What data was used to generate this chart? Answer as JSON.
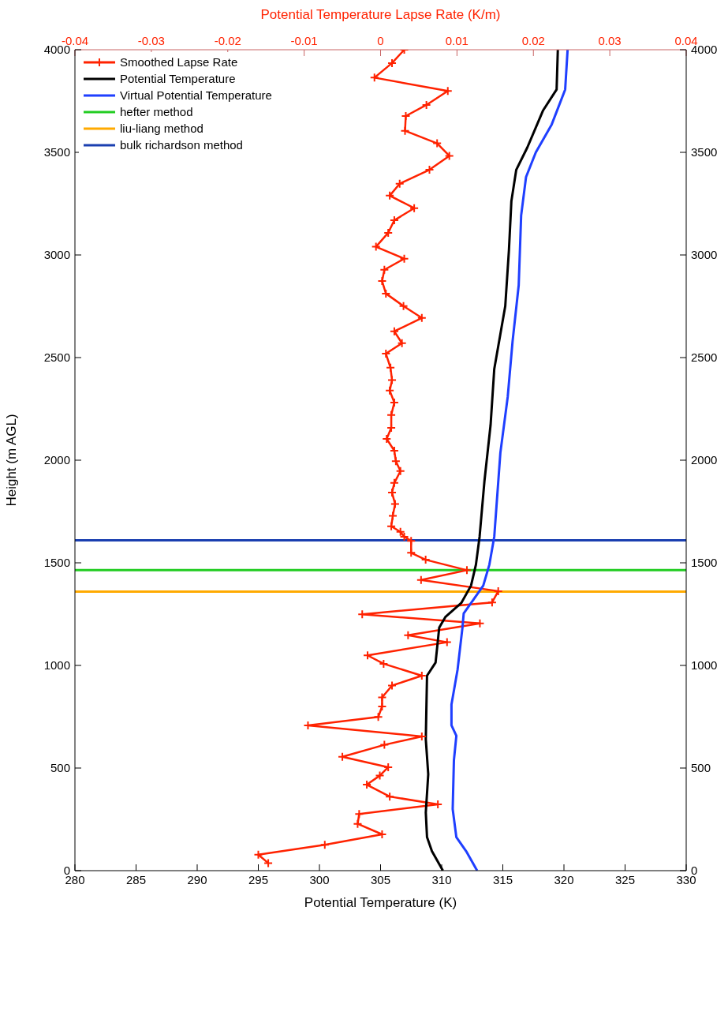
{
  "chart_data": {
    "type": "line",
    "xlabel": "Potential Temperature (K)",
    "ylabel": "Height (m AGL)",
    "x2label": "Potential Temperature Lapse Rate (K/m)",
    "xlim": [
      280,
      330
    ],
    "xticks": [
      280,
      285,
      290,
      295,
      300,
      305,
      310,
      315,
      320,
      325,
      330
    ],
    "ylim": [
      0,
      4000
    ],
    "yticks": [
      0,
      500,
      1000,
      1500,
      2000,
      2500,
      3000,
      3500,
      4000
    ],
    "y2lim": [
      0,
      4000
    ],
    "y2ticks": [
      0,
      500,
      1000,
      1500,
      2000,
      2500,
      3000,
      3500,
      4000
    ],
    "x2lim": [
      -0.04,
      0.04
    ],
    "x2ticks": [
      -0.04,
      -0.03,
      -0.02,
      -0.01,
      0,
      0.01,
      0.02,
      0.03,
      0.04
    ],
    "legend": "top left",
    "line_style": "solid",
    "series": [
      {
        "name": "Smoothed Lapse Rate",
        "color": "#ff2200",
        "axis": "x2",
        "marker": "cross",
        "x": [
          0.0031,
          0.0015,
          -0.0008,
          0.0088,
          0.006,
          0.0033,
          0.0032,
          0.0074,
          0.009,
          0.0064,
          0.0025,
          0.0012,
          0.0044,
          0.0018,
          0.001,
          -0.0006,
          0.0031,
          0.0005,
          0.0002,
          0.0007,
          0.003,
          0.0054,
          0.0018,
          0.0028,
          0.0007,
          0.0013,
          0.0015,
          0.0012,
          0.0018,
          0.0014,
          0.0014,
          0.0008,
          0.0018,
          0.002,
          0.0026,
          0.0018,
          0.0015,
          0.0019,
          0.0016,
          0.0014,
          0.0026,
          0.0031,
          0.004,
          0.004,
          0.0059,
          0.0113,
          0.0053,
          0.0154,
          0.0146,
          -0.0024,
          0.013,
          0.0036,
          0.0087,
          -0.0017,
          0.0004,
          0.0054,
          0.0015,
          0.0002,
          0.0002,
          -0.0003,
          -0.0095,
          0.0054,
          0.0005,
          -0.005,
          0.001,
          -0.0001,
          -0.0018,
          0.0012,
          0.0075,
          -0.0028,
          -0.003,
          0.0002,
          -0.0073,
          -0.016,
          -0.0147
        ],
        "values": [
          4000,
          3935,
          3864,
          3799,
          3731,
          3677,
          3605,
          3544,
          3483,
          3415,
          3347,
          3289,
          3228,
          3169,
          3108,
          3040,
          2982,
          2928,
          2873,
          2812,
          2751,
          2693,
          2628,
          2570,
          2519,
          2451,
          2390,
          2339,
          2281,
          2220,
          2158,
          2104,
          2046,
          1995,
          1947,
          1889,
          1842,
          1787,
          1729,
          1678,
          1651,
          1627,
          1607,
          1549,
          1515,
          1464,
          1416,
          1362,
          1307,
          1249,
          1205,
          1147,
          1113,
          1049,
          1008,
          950,
          902,
          844,
          800,
          749,
          708,
          654,
          613,
          555,
          504,
          463,
          419,
          361,
          323,
          276,
          228,
          177,
          126,
          78,
          37
        ]
      },
      {
        "name": "Potential Temperature",
        "color": "#000000",
        "marker": "none",
        "x": [
          319.5,
          319.4,
          318.3,
          317.0,
          316.1,
          315.7,
          315.5,
          315.2,
          314.8,
          314.3,
          314.0,
          313.5,
          313.1,
          312.8,
          312.4,
          311.6,
          310.3,
          309.8,
          309.5,
          308.8,
          308.7,
          308.9,
          308.7,
          308.8,
          309.2,
          310.1
        ],
        "values": [
          4000,
          3806,
          3705,
          3523,
          3415,
          3262,
          3023,
          2751,
          2614,
          2444,
          2172,
          1900,
          1627,
          1491,
          1389,
          1304,
          1236,
          1185,
          1014,
          950,
          640,
          470,
          283,
          163,
          95,
          0
        ]
      },
      {
        "name": "Virtual Potential Temperature",
        "color": "#1f3fff",
        "marker": "none",
        "x": [
          320.3,
          320.1,
          319.0,
          317.7,
          316.9,
          316.5,
          316.3,
          315.8,
          315.4,
          314.8,
          314.3,
          313.9,
          313.4,
          312.6,
          311.8,
          311.7,
          311.3,
          310.8,
          310.8,
          311.2,
          311.0,
          310.9,
          311.2,
          312.0,
          312.9
        ],
        "values": [
          4000,
          3806,
          3636,
          3500,
          3380,
          3193,
          2853,
          2580,
          2308,
          2036,
          1627,
          1491,
          1389,
          1321,
          1253,
          1185,
          980,
          810,
          708,
          657,
          538,
          300,
          163,
          95,
          0
        ]
      }
    ],
    "ref_lines": [
      {
        "axis": "y",
        "value": 1464,
        "label": "hefter method",
        "color": "#22cc22"
      },
      {
        "axis": "y",
        "value": 1360,
        "label": "liu-liang method",
        "color": "#ffaa00"
      },
      {
        "axis": "y",
        "value": 1610,
        "label": "bulk richardson method",
        "color": "#1a3fb0"
      }
    ]
  }
}
